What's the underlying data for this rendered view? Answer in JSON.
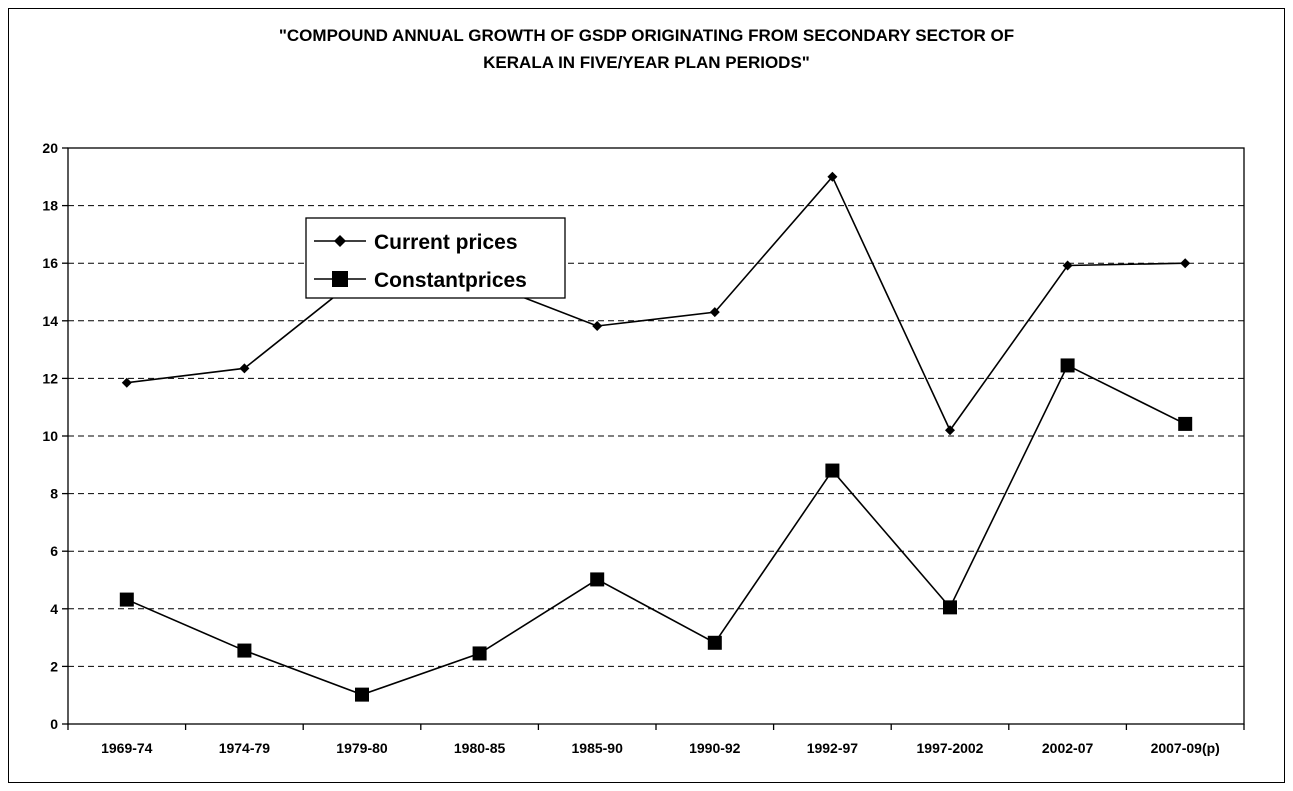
{
  "chart_data": {
    "type": "line",
    "title_line1": "\"COMPOUND ANNUAL GROWTH OF GSDP ORIGINATING FROM SECONDARY SECTOR OF",
    "title_line2": "KERALA IN FIVE/YEAR PLAN PERIODS\"",
    "xlabel": "",
    "ylabel": "",
    "categories": [
      "1969-74",
      "1974-79",
      "1979-80",
      "1980-85",
      "1985-90",
      "1990-92",
      "1992-97",
      "1997-2002",
      "2002-07",
      "2007-09(p)"
    ],
    "ylim": [
      0,
      20
    ],
    "yticks": [
      0,
      2,
      4,
      6,
      8,
      10,
      12,
      14,
      16,
      18,
      20
    ],
    "grid": "horizontal dashed",
    "legend_position": "upper-left",
    "series": [
      {
        "name": "Current prices",
        "marker": "diamond",
        "color": "#000000",
        "values": [
          11.85,
          12.35,
          15.6,
          15.4,
          13.82,
          14.3,
          19.0,
          10.2,
          15.92,
          16.0
        ]
      },
      {
        "name": "Constantprices",
        "marker": "square",
        "color": "#000000",
        "values": [
          4.32,
          2.55,
          1.02,
          2.45,
          5.02,
          2.82,
          8.8,
          4.05,
          12.45,
          10.42
        ]
      }
    ]
  }
}
